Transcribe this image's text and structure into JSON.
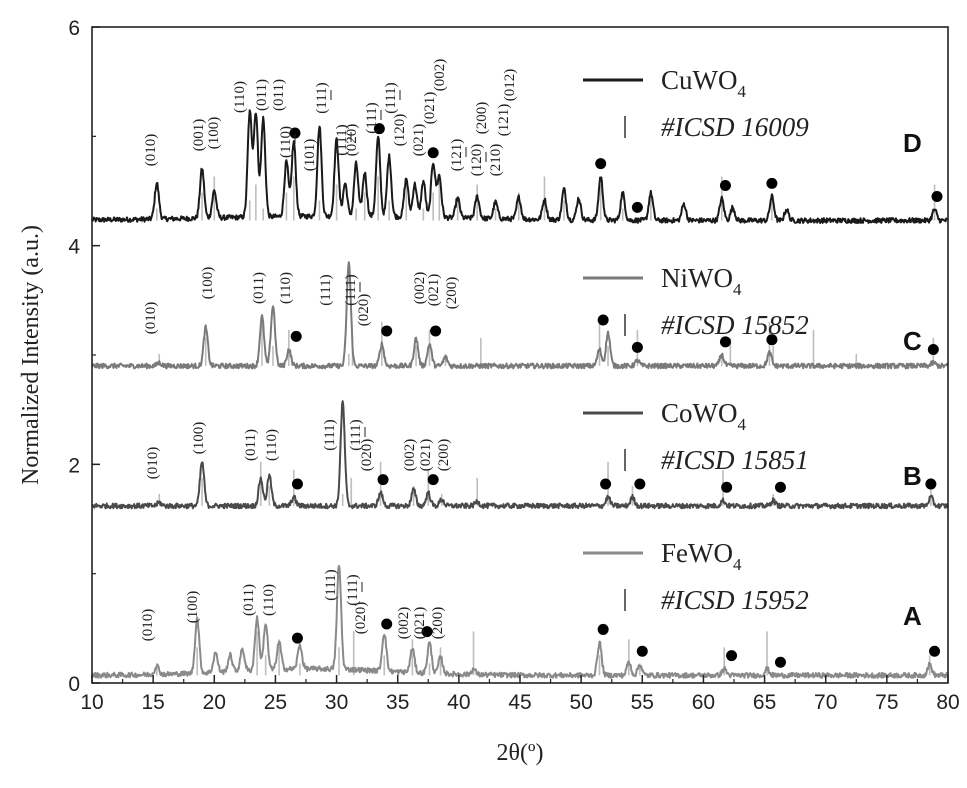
{
  "chart_data": {
    "type": "line",
    "xlabel": "2θ(º)",
    "ylabel": "Normalized Intensity (a.u.)",
    "xlim": [
      10,
      80
    ],
    "ylim": [
      0,
      6
    ],
    "x_ticks": [
      10,
      15,
      20,
      25,
      30,
      35,
      40,
      45,
      50,
      55,
      60,
      65,
      70,
      75,
      80
    ],
    "y_ticks": [
      0,
      2,
      4,
      6
    ],
    "grid": false,
    "legend_position": "inside-right, one entry per pattern",
    "series": [
      {
        "name": "CuWO4",
        "panel": "D",
        "reference": "#ICSD 16009",
        "color": "#1a1a1a",
        "baseline": 4.23,
        "peaks": [
          [
            15.3,
            0.33
          ],
          [
            19.0,
            0.45
          ],
          [
            20.0,
            0.25
          ],
          [
            22.9,
            0.95
          ],
          [
            23.4,
            0.95
          ],
          [
            24.0,
            0.9
          ],
          [
            25.9,
            0.5
          ],
          [
            26.5,
            0.68
          ],
          [
            28.6,
            0.82
          ],
          [
            30.0,
            0.7
          ],
          [
            30.7,
            0.3
          ],
          [
            31.6,
            0.48
          ],
          [
            32.3,
            0.4
          ],
          [
            33.4,
            0.72
          ],
          [
            34.3,
            0.55
          ],
          [
            35.7,
            0.35
          ],
          [
            36.4,
            0.3
          ],
          [
            37.1,
            0.33
          ],
          [
            37.9,
            0.5
          ],
          [
            38.4,
            0.38
          ],
          [
            39.9,
            0.18
          ],
          [
            41.5,
            0.2
          ],
          [
            43.0,
            0.15
          ],
          [
            44.9,
            0.2
          ],
          [
            47.0,
            0.18
          ],
          [
            48.6,
            0.28
          ],
          [
            49.8,
            0.2
          ],
          [
            51.6,
            0.4
          ],
          [
            53.4,
            0.25
          ],
          [
            55.7,
            0.25
          ],
          [
            58.4,
            0.15
          ],
          [
            61.5,
            0.2
          ],
          [
            62.4,
            0.12
          ],
          [
            65.6,
            0.22
          ],
          [
            66.8,
            0.1
          ],
          [
            78.9,
            0.1
          ]
        ],
        "reference_lines": [
          15.3,
          19.0,
          20.0,
          22.9,
          23.4,
          24.0,
          25.9,
          26.5,
          28.6,
          30.0,
          31.6,
          32.3,
          33.4,
          34.3,
          35.7,
          37.1,
          37.9,
          38.4,
          39.9,
          41.5,
          43.0,
          44.9,
          47.0,
          48.6,
          51.6,
          53.4,
          55.7,
          61.5,
          65.6,
          78.9
        ],
        "hkl_labels": [
          "(010)",
          "(001)",
          "(100)",
          "(110)",
          "(011)",
          "(011)",
          "(110)",
          "(101)",
          "(111)",
          "(111)",
          "(020)",
          "(111)",
          "(111)",
          "(120)",
          "(021)",
          "(021)",
          "(002)",
          "(121)",
          "(120)",
          "(210)",
          "(200)",
          "(121)",
          "(012)"
        ],
        "dot_marks": [
          26.6,
          33.5,
          37.9,
          51.6,
          54.6,
          61.8,
          65.6,
          79.1
        ]
      },
      {
        "name": "NiWO4",
        "panel": "C",
        "reference": "#ICSD 15852",
        "color": "#7a7a7a",
        "baseline": 2.9,
        "peaks": [
          [
            15.5,
            0.03
          ],
          [
            19.3,
            0.35
          ],
          [
            23.9,
            0.45
          ],
          [
            24.8,
            0.55
          ],
          [
            26.1,
            0.15
          ],
          [
            31.0,
            0.95
          ],
          [
            33.7,
            0.2
          ],
          [
            36.5,
            0.25
          ],
          [
            37.6,
            0.2
          ],
          [
            38.9,
            0.08
          ],
          [
            51.5,
            0.15
          ],
          [
            52.2,
            0.3
          ],
          [
            54.6,
            0.05
          ],
          [
            61.5,
            0.1
          ],
          [
            65.4,
            0.12
          ],
          [
            78.8,
            0.03
          ]
        ],
        "reference_lines": [
          15.5,
          19.3,
          23.9,
          24.8,
          26.1,
          31.0,
          31.3,
          33.7,
          36.5,
          37.6,
          38.9,
          41.8,
          51.5,
          52.2,
          54.6,
          61.5,
          62.2,
          65.4,
          65.7,
          69.0,
          72.5,
          78.8
        ],
        "hkl_labels": [
          "(010)",
          "(100)",
          "(011)",
          "(110)",
          "(111)",
          "(111)",
          "(020)",
          "(002)",
          "(021)",
          "(200)"
        ],
        "dot_marks": [
          26.7,
          34.1,
          38.1,
          51.8,
          54.6,
          61.8,
          65.6,
          78.8
        ]
      },
      {
        "name": "CoWO4",
        "panel": "B",
        "reference": "#ICSD 15851",
        "color": "#4a4a4a",
        "baseline": 1.62,
        "peaks": [
          [
            15.5,
            0.03
          ],
          [
            19.0,
            0.4
          ],
          [
            23.8,
            0.25
          ],
          [
            24.5,
            0.28
          ],
          [
            26.5,
            0.08
          ],
          [
            30.5,
            0.95
          ],
          [
            33.6,
            0.12
          ],
          [
            36.3,
            0.15
          ],
          [
            37.5,
            0.12
          ],
          [
            38.6,
            0.06
          ],
          [
            41.5,
            0.04
          ],
          [
            52.2,
            0.08
          ],
          [
            54.2,
            0.08
          ],
          [
            61.6,
            0.05
          ],
          [
            65.7,
            0.05
          ],
          [
            78.6,
            0.08
          ]
        ],
        "reference_lines": [
          15.5,
          19.0,
          23.8,
          24.5,
          26.5,
          30.5,
          31.2,
          33.6,
          36.3,
          37.5,
          38.6,
          41.5,
          52.2,
          54.2,
          61.6,
          65.7,
          78.6
        ],
        "hkl_labels": [
          "(010)",
          "(100)",
          "(011)",
          "(110)",
          "(111)",
          "(111)",
          "(020)",
          "(002)",
          "(021)",
          "(200)"
        ],
        "dot_marks": [
          26.8,
          33.8,
          37.9,
          52.0,
          54.8,
          61.9,
          66.3,
          78.6
        ]
      },
      {
        "name": "FeWO4",
        "panel": "A",
        "reference": "#ICSD 15952",
        "color": "#8a8a8a",
        "baseline": 0.07,
        "peaks": [
          [
            15.3,
            0.08
          ],
          [
            18.6,
            0.5
          ],
          [
            20.1,
            0.18
          ],
          [
            21.3,
            0.15
          ],
          [
            22.3,
            0.2
          ],
          [
            23.5,
            0.48
          ],
          [
            24.2,
            0.42
          ],
          [
            25.3,
            0.25
          ],
          [
            27.0,
            0.22
          ],
          [
            30.2,
            0.95
          ],
          [
            33.9,
            0.35
          ],
          [
            36.2,
            0.22
          ],
          [
            37.6,
            0.28
          ],
          [
            38.5,
            0.15
          ],
          [
            41.2,
            0.05
          ],
          [
            51.5,
            0.3
          ],
          [
            53.9,
            0.12
          ],
          [
            54.8,
            0.1
          ],
          [
            61.7,
            0.06
          ],
          [
            65.2,
            0.06
          ],
          [
            78.5,
            0.1
          ]
        ],
        "reference_lines": [
          15.3,
          18.6,
          23.5,
          24.2,
          25.3,
          27.0,
          30.2,
          31.4,
          33.9,
          36.2,
          37.6,
          38.5,
          41.2,
          51.5,
          53.9,
          54.8,
          61.7,
          65.2,
          78.5
        ],
        "hkl_labels": [
          "(010)",
          "(100)",
          "(011)",
          "(110)",
          "(111)",
          "(111)",
          "(020)",
          "(002)",
          "(021)",
          "(200)"
        ],
        "dot_marks": [
          26.8,
          34.1,
          37.4,
          51.8,
          55.0,
          62.3,
          66.3,
          78.9
        ]
      }
    ]
  }
}
